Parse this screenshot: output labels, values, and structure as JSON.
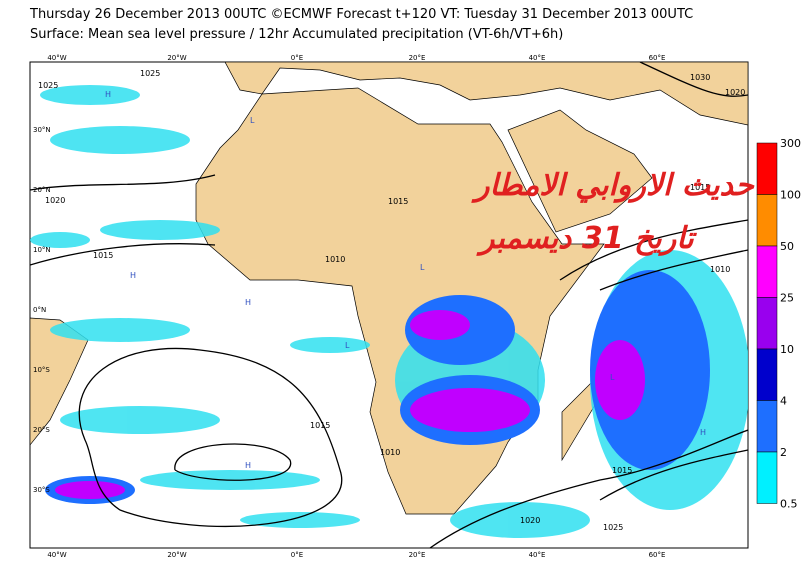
{
  "header": {
    "title": "Thursday 26 December 2013 00UTC ©ECMWF Forecast t+120 VT: Tuesday 31 December 2013 00UTC",
    "subtitle": "Surface: Mean sea level pressure / 12hr Accumulated precipitation (VT-6h/VT+6h)"
  },
  "overlay": {
    "line1": "حديث الاروابي الامطار",
    "line2": "تاريخ 31 ديسمبر"
  },
  "longitude_labels": [
    "40°W",
    "20°W",
    "0°E",
    "20°E",
    "40°E",
    "60°E"
  ],
  "latitude_labels": [
    "30°N",
    "20°N",
    "10°N",
    "0°N",
    "10°S",
    "20°S",
    "30°S"
  ],
  "isobar_labels": [
    "1025",
    "1025",
    "1020",
    "1015",
    "1010",
    "1015",
    "1010",
    "1015",
    "1020",
    "1025",
    "1030",
    "1020",
    "1015",
    "1010",
    "1015"
  ],
  "pressure_centers": [
    "H",
    "H",
    "H",
    "L",
    "L",
    "L",
    "H",
    "H",
    "L"
  ],
  "colorbar": {
    "labels": [
      "300",
      "100",
      "50",
      "25",
      "10",
      "4",
      "2",
      "0.5"
    ],
    "colors": [
      "#ff0000",
      "#ff8c00",
      "#ff00ff",
      "#9900ee",
      "#0000cc",
      "#1e6fff",
      "#00f0ff"
    ]
  }
}
